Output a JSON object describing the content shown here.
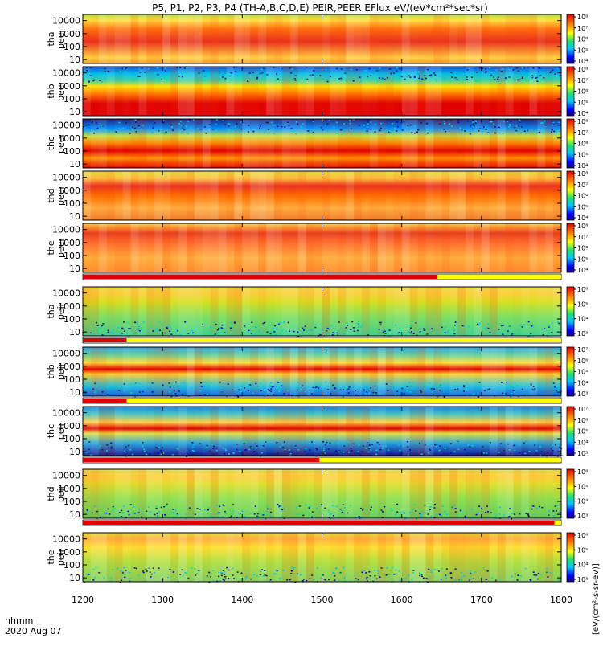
{
  "title": "P5, P1, P2, P3, P4 (TH-A,B,C,D,E) PEIR,PEER EFlux eV/(eV*cm²*sec*sr)",
  "chart_data": {
    "type": "heatmap",
    "date_label": "2020 Aug 07",
    "x_axis_label": "hhmm",
    "x_range": [
      "1200",
      "1800"
    ],
    "x_ticks": [
      "1200",
      "1300",
      "1400",
      "1500",
      "1600",
      "1700",
      "1800"
    ],
    "colorbar_label": "[eV/(cm²-s-sr-eV)]",
    "y_scale": "log",
    "y_ticks": [
      "10",
      "100",
      "1000",
      "10000"
    ],
    "panels": [
      {
        "probe": "tha",
        "species": "peer",
        "y_range": [
          5,
          30000
        ],
        "colorbar_ticks": [
          "10⁴",
          "10⁵",
          "10⁶",
          "10⁷",
          "10⁸"
        ]
      },
      {
        "probe": "thb",
        "species": "peer",
        "y_range": [
          5,
          30000
        ],
        "colorbar_ticks": [
          "10⁴",
          "10⁵",
          "10⁶",
          "10⁷",
          "10⁸"
        ]
      },
      {
        "probe": "thc",
        "species": "peer",
        "y_range": [
          5,
          30000
        ],
        "colorbar_ticks": [
          "10⁴",
          "10⁵",
          "10⁶",
          "10⁷",
          "10⁸"
        ]
      },
      {
        "probe": "thd",
        "species": "peer",
        "y_range": [
          5,
          30000
        ],
        "colorbar_ticks": [
          "10⁴",
          "10⁵",
          "10⁶",
          "10⁷",
          "10⁸"
        ]
      },
      {
        "probe": "the",
        "species": "peer",
        "y_range": [
          5,
          30000
        ],
        "colorbar_ticks": [
          "10⁴",
          "10⁵",
          "10⁶",
          "10⁷",
          "10⁸"
        ]
      },
      {
        "probe": "tha",
        "species": "peir",
        "y_range": [
          5,
          30000
        ],
        "colorbar_ticks": [
          "10³",
          "10⁴",
          "10⁵",
          "10⁶"
        ]
      },
      {
        "probe": "thb",
        "species": "peir",
        "y_range": [
          5,
          30000
        ],
        "colorbar_ticks": [
          "10³",
          "10⁴",
          "10⁵",
          "10⁶",
          "10⁷"
        ]
      },
      {
        "probe": "thc",
        "species": "peir",
        "y_range": [
          5,
          30000
        ],
        "colorbar_ticks": [
          "10³",
          "10⁴",
          "10⁵",
          "10⁶",
          "10⁷"
        ]
      },
      {
        "probe": "thd",
        "species": "peir",
        "y_range": [
          5,
          30000
        ],
        "colorbar_ticks": [
          "10³",
          "10⁴",
          "10⁵",
          "10⁶"
        ]
      },
      {
        "probe": "the",
        "species": "peir",
        "y_range": [
          5,
          30000
        ],
        "colorbar_ticks": [
          "10³",
          "10⁴",
          "10⁵",
          "10⁶"
        ]
      }
    ],
    "mode_bars": [
      {
        "after_panel": 4,
        "red_until": "1627"
      },
      {
        "after_panel": 5,
        "red_until": "1233"
      },
      {
        "after_panel": 6,
        "red_until": "1233"
      },
      {
        "after_panel": 7,
        "red_until": "1458"
      },
      {
        "after_panel": 8,
        "red_until": "1755"
      }
    ]
  }
}
